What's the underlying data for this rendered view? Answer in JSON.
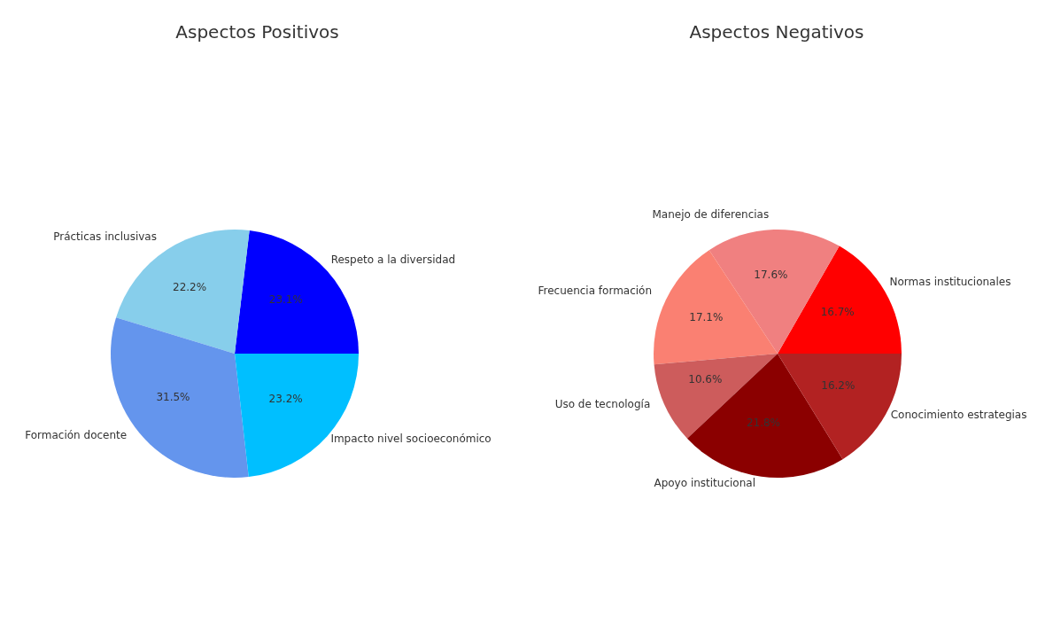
{
  "chart_data": [
    {
      "type": "pie",
      "title": "Aspectos Positivos",
      "categories": [
        "Respeto a la diversidad",
        "Prácticas inclusivas",
        "Formación docente",
        "Impacto nivel socioeconómico"
      ],
      "values": [
        23.1,
        22.2,
        31.5,
        23.2
      ],
      "colors": [
        "#0000ff",
        "#87ceeb",
        "#6495ed",
        "#00bfff"
      ],
      "value_labels": [
        "23.1%",
        "22.2%",
        "31.5%",
        "23.2%"
      ]
    },
    {
      "type": "pie",
      "title": "Aspectos Negativos",
      "categories": [
        "Normas institucionales",
        "Manejo de diferencias",
        "Frecuencia formación",
        "Uso de tecnología",
        "Apoyo institucional",
        "Conocimiento estrategias"
      ],
      "values": [
        16.7,
        17.6,
        17.1,
        10.6,
        21.8,
        16.2
      ],
      "colors": [
        "#ff0000",
        "#f08080",
        "#fa8072",
        "#cd5c5c",
        "#8b0000",
        "#b22222"
      ],
      "value_labels": [
        "16.7%",
        "17.6%",
        "17.1%",
        "10.6%",
        "21.8%",
        "16.2%"
      ]
    }
  ]
}
